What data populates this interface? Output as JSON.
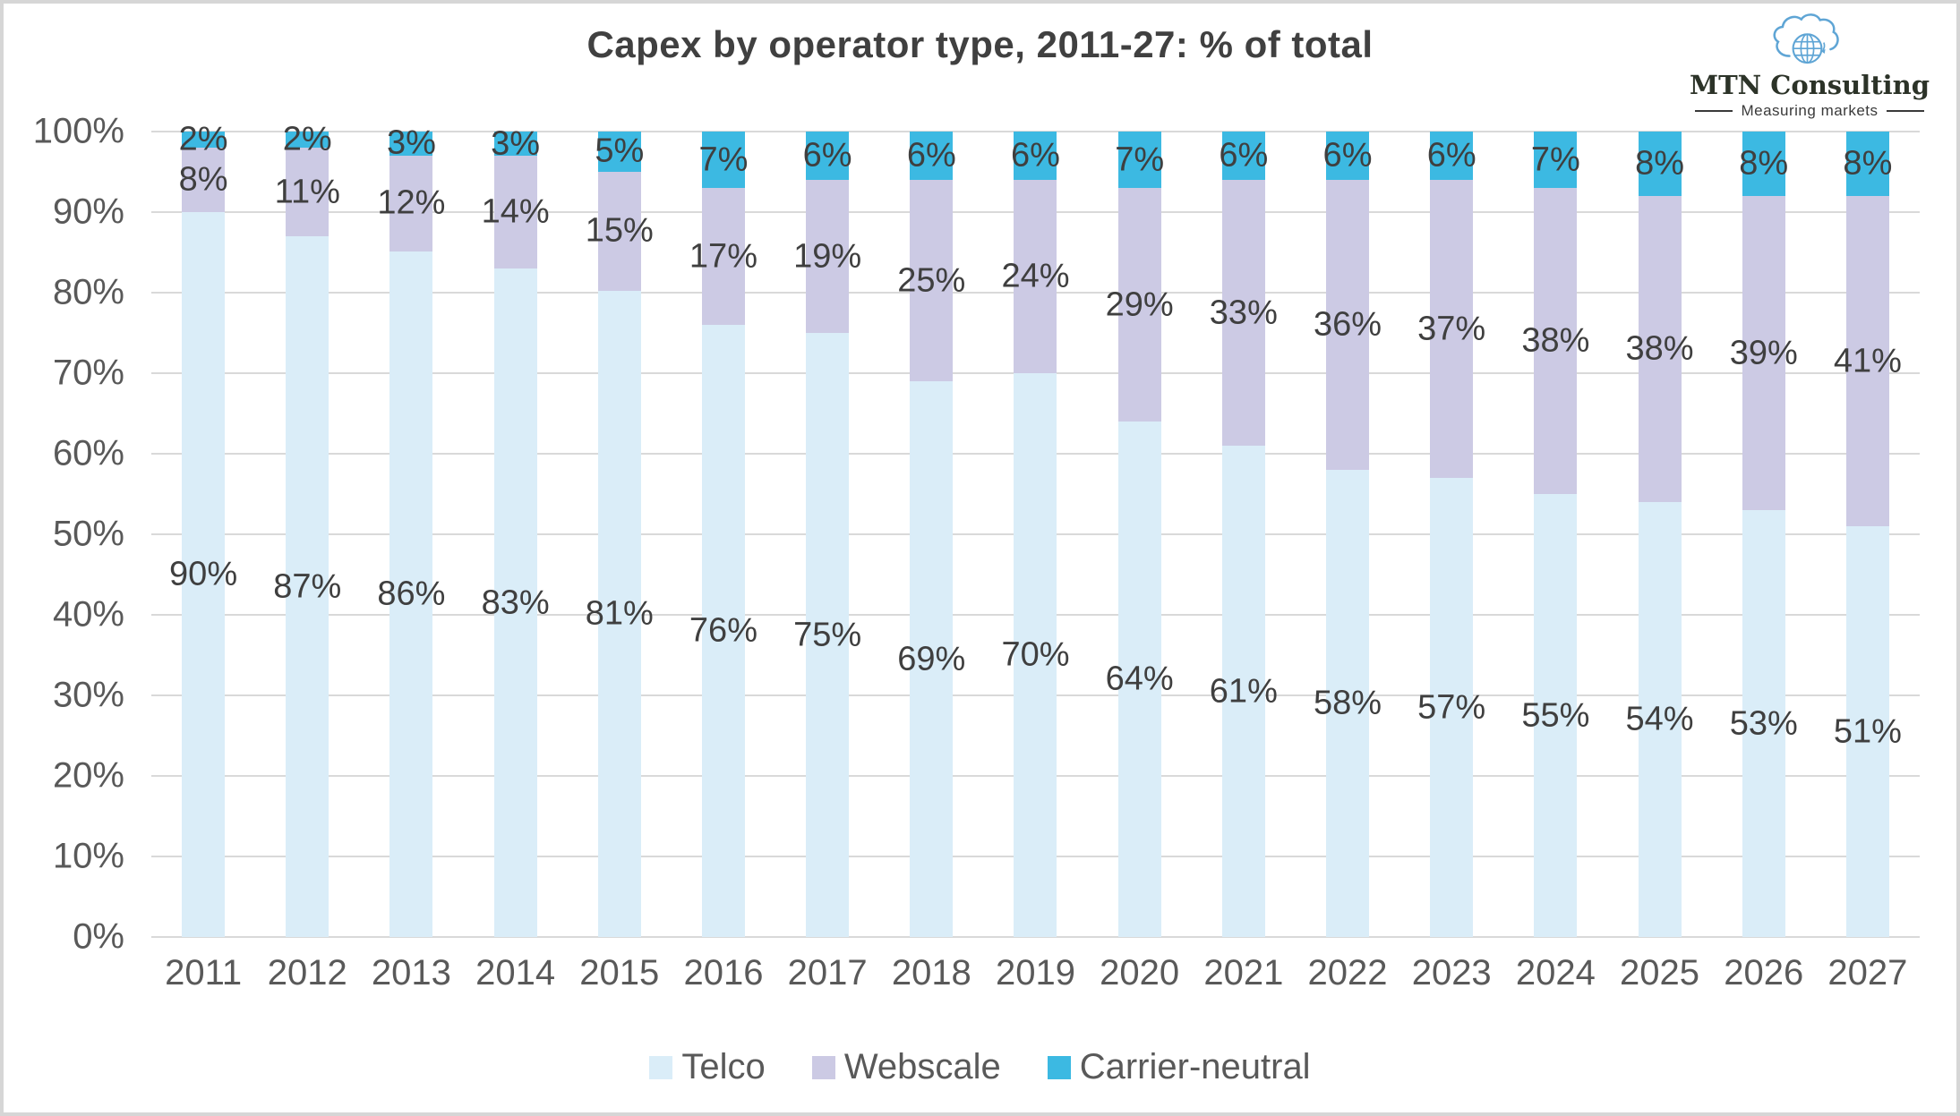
{
  "title": "Capex by operator type, 2011-27: % of total",
  "logo": {
    "name": "MTN Consulting",
    "tagline": "Measuring markets",
    "icon": "cloud-globe-icon",
    "accent_color": "#5fa5d5",
    "text_color": "#2c3328"
  },
  "legend": [
    {
      "label": "Telco",
      "color": "#daedf8"
    },
    {
      "label": "Webscale",
      "color": "#cccae4"
    },
    {
      "label": "Carrier-neutral",
      "color": "#3cb9e2"
    }
  ],
  "axis": {
    "yticks": [
      "0%",
      "10%",
      "20%",
      "30%",
      "40%",
      "50%",
      "60%",
      "70%",
      "80%",
      "90%",
      "100%"
    ],
    "gridline_color": "#d9d9d9",
    "tick_color": "#595959"
  },
  "chart_data": {
    "type": "bar",
    "stacked": true,
    "categories": [
      "2011",
      "2012",
      "2013",
      "2014",
      "2015",
      "2016",
      "2017",
      "2018",
      "2019",
      "2020",
      "2021",
      "2022",
      "2023",
      "2024",
      "2025",
      "2026",
      "2027"
    ],
    "series": [
      {
        "name": "Telco",
        "color": "#daedf8",
        "values": [
          90,
          87,
          86,
          83,
          81,
          76,
          75,
          69,
          70,
          64,
          61,
          58,
          57,
          55,
          54,
          53,
          51
        ]
      },
      {
        "name": "Webscale",
        "color": "#cccae4",
        "values": [
          8,
          11,
          12,
          14,
          15,
          17,
          19,
          25,
          24,
          29,
          33,
          36,
          37,
          38,
          38,
          39,
          41
        ]
      },
      {
        "name": "Carrier-neutral",
        "color": "#3cb9e2",
        "values": [
          2,
          2,
          3,
          3,
          5,
          7,
          6,
          6,
          6,
          7,
          6,
          6,
          6,
          7,
          8,
          8,
          8
        ]
      }
    ],
    "title": "Capex by operator type, 2011-27: % of total",
    "xlabel": "",
    "ylabel": "",
    "ylim": [
      0,
      100
    ],
    "ytick_step": 10,
    "grid": true,
    "legend_position": "bottom",
    "value_label_suffix": "%",
    "data_label_color": "#3f3f3f"
  }
}
